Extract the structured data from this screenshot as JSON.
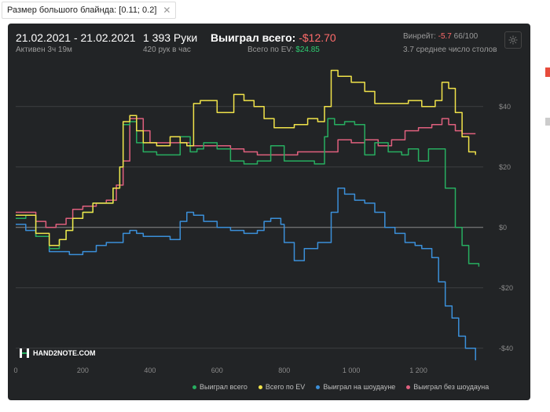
{
  "filter": {
    "label": "Размер большого блайнда: [0.11; 0.2]",
    "close": "✕"
  },
  "header": {
    "date_range": "21.02.2021 - 21.02.2021",
    "active": "Активен 3ч 19м",
    "hands": "1 393 Руки",
    "hands_per_hour": "420 рук в час",
    "won_label": "Выиграл всего: ",
    "won_value": "-$12.70",
    "ev_label": "Всего по EV: ",
    "ev_value": "$24.85",
    "winrate_label": "Винрейт: ",
    "winrate_value": "-5.7",
    "winrate_suffix": " 66/100",
    "tables": "3.7 среднее число столов"
  },
  "logo": "HAND2NOTE.COM",
  "colors": {
    "green": "#27ae60",
    "yellow": "#f1e34a",
    "blue": "#3b8fd9",
    "pink": "#e0607e"
  },
  "legend": [
    {
      "label": "Выиграл всего",
      "color": "#27ae60"
    },
    {
      "label": "Всего по EV",
      "color": "#f1e34a"
    },
    {
      "label": "Выиграл на шоудауне",
      "color": "#3b8fd9"
    },
    {
      "label": "Выиграл без шоудауна",
      "color": "#e0607e"
    }
  ],
  "chart_data": {
    "type": "line",
    "xlim": [
      0,
      1393
    ],
    "ylim": [
      -45,
      55
    ],
    "x_ticks": [
      "0",
      "200",
      "400",
      "600",
      "800",
      "1 000",
      "1 200"
    ],
    "x_tick_values": [
      0,
      200,
      400,
      600,
      800,
      1000,
      1200
    ],
    "y_ticks": [
      "$40",
      "$20",
      "$0",
      "-$20",
      "-$40"
    ],
    "y_tick_values": [
      40,
      20,
      0,
      -20,
      -40
    ],
    "grid": true,
    "series": [
      {
        "name": "Выиграл всего",
        "color": "#27ae60",
        "points": [
          [
            0,
            3
          ],
          [
            30,
            4
          ],
          [
            60,
            -3
          ],
          [
            100,
            -7
          ],
          [
            130,
            -4
          ],
          [
            150,
            -1
          ],
          [
            170,
            3
          ],
          [
            200,
            5
          ],
          [
            230,
            8
          ],
          [
            260,
            8
          ],
          [
            290,
            13
          ],
          [
            310,
            20
          ],
          [
            320,
            34
          ],
          [
            340,
            35
          ],
          [
            360,
            28
          ],
          [
            380,
            25
          ],
          [
            420,
            24
          ],
          [
            460,
            24
          ],
          [
            490,
            30
          ],
          [
            520,
            25
          ],
          [
            540,
            26
          ],
          [
            560,
            28
          ],
          [
            600,
            26
          ],
          [
            640,
            22
          ],
          [
            680,
            21
          ],
          [
            720,
            22
          ],
          [
            760,
            27
          ],
          [
            780,
            27
          ],
          [
            800,
            22
          ],
          [
            830,
            22
          ],
          [
            860,
            22
          ],
          [
            890,
            21
          ],
          [
            920,
            30
          ],
          [
            930,
            36
          ],
          [
            950,
            34
          ],
          [
            980,
            35
          ],
          [
            1010,
            34
          ],
          [
            1040,
            24
          ],
          [
            1070,
            28
          ],
          [
            1110,
            25
          ],
          [
            1150,
            24
          ],
          [
            1170,
            26
          ],
          [
            1200,
            22
          ],
          [
            1230,
            26
          ],
          [
            1260,
            26
          ],
          [
            1280,
            13
          ],
          [
            1310,
            0
          ],
          [
            1330,
            -6
          ],
          [
            1350,
            -12
          ],
          [
            1380,
            -13
          ]
        ]
      },
      {
        "name": "Всего по EV",
        "color": "#f1e34a",
        "points": [
          [
            0,
            4
          ],
          [
            30,
            4
          ],
          [
            60,
            -2
          ],
          [
            100,
            -6
          ],
          [
            130,
            -4
          ],
          [
            150,
            -1
          ],
          [
            170,
            3
          ],
          [
            200,
            5
          ],
          [
            230,
            8
          ],
          [
            260,
            8
          ],
          [
            290,
            13
          ],
          [
            310,
            20
          ],
          [
            320,
            35
          ],
          [
            340,
            37
          ],
          [
            360,
            32
          ],
          [
            380,
            28
          ],
          [
            420,
            27
          ],
          [
            460,
            30
          ],
          [
            490,
            28
          ],
          [
            510,
            27
          ],
          [
            530,
            41
          ],
          [
            550,
            42
          ],
          [
            570,
            42
          ],
          [
            600,
            38
          ],
          [
            620,
            38
          ],
          [
            650,
            44
          ],
          [
            680,
            42
          ],
          [
            710,
            40
          ],
          [
            740,
            36
          ],
          [
            770,
            33
          ],
          [
            800,
            33
          ],
          [
            830,
            34
          ],
          [
            870,
            36
          ],
          [
            900,
            35
          ],
          [
            920,
            40
          ],
          [
            940,
            52
          ],
          [
            960,
            50
          ],
          [
            1000,
            48
          ],
          [
            1040,
            45
          ],
          [
            1070,
            41
          ],
          [
            1110,
            41
          ],
          [
            1140,
            41
          ],
          [
            1170,
            42
          ],
          [
            1210,
            40
          ],
          [
            1250,
            42
          ],
          [
            1270,
            48
          ],
          [
            1290,
            46
          ],
          [
            1310,
            38
          ],
          [
            1330,
            30
          ],
          [
            1350,
            25
          ],
          [
            1370,
            24
          ]
        ]
      },
      {
        "name": "Выиграл на шоудауне",
        "color": "#3b8fd9",
        "points": [
          [
            0,
            1
          ],
          [
            30,
            -1
          ],
          [
            60,
            -3
          ],
          [
            100,
            -8
          ],
          [
            130,
            -8
          ],
          [
            160,
            -9
          ],
          [
            200,
            -8
          ],
          [
            240,
            -6
          ],
          [
            270,
            -5
          ],
          [
            300,
            -5
          ],
          [
            320,
            -2
          ],
          [
            340,
            -1
          ],
          [
            360,
            -2
          ],
          [
            380,
            -3
          ],
          [
            420,
            -3
          ],
          [
            460,
            -4
          ],
          [
            490,
            2
          ],
          [
            510,
            5
          ],
          [
            530,
            4
          ],
          [
            560,
            2
          ],
          [
            600,
            0
          ],
          [
            640,
            -1
          ],
          [
            680,
            -2
          ],
          [
            720,
            -1
          ],
          [
            740,
            2
          ],
          [
            760,
            3
          ],
          [
            790,
            1
          ],
          [
            800,
            -5
          ],
          [
            830,
            -11
          ],
          [
            860,
            -7
          ],
          [
            900,
            -5
          ],
          [
            940,
            5
          ],
          [
            960,
            13
          ],
          [
            980,
            11
          ],
          [
            1010,
            9
          ],
          [
            1040,
            8
          ],
          [
            1070,
            5
          ],
          [
            1100,
            0
          ],
          [
            1130,
            -2
          ],
          [
            1160,
            -5
          ],
          [
            1190,
            -6
          ],
          [
            1210,
            -7
          ],
          [
            1240,
            -10
          ],
          [
            1260,
            -18
          ],
          [
            1280,
            -26
          ],
          [
            1300,
            -30
          ],
          [
            1320,
            -36
          ],
          [
            1340,
            -40
          ],
          [
            1370,
            -44
          ]
        ]
      },
      {
        "name": "Выиграл без шоудауна",
        "color": "#e0607e",
        "points": [
          [
            0,
            5
          ],
          [
            30,
            5
          ],
          [
            60,
            2
          ],
          [
            90,
            0
          ],
          [
            120,
            1
          ],
          [
            150,
            3
          ],
          [
            170,
            6
          ],
          [
            200,
            7
          ],
          [
            240,
            8
          ],
          [
            270,
            9
          ],
          [
            300,
            14
          ],
          [
            320,
            22
          ],
          [
            340,
            36
          ],
          [
            360,
            36
          ],
          [
            380,
            32
          ],
          [
            400,
            28
          ],
          [
            440,
            28
          ],
          [
            480,
            28
          ],
          [
            520,
            27
          ],
          [
            560,
            27
          ],
          [
            600,
            27
          ],
          [
            640,
            26
          ],
          [
            680,
            25
          ],
          [
            720,
            24
          ],
          [
            760,
            24
          ],
          [
            800,
            24
          ],
          [
            840,
            25
          ],
          [
            880,
            25
          ],
          [
            920,
            25
          ],
          [
            960,
            29
          ],
          [
            1000,
            28
          ],
          [
            1040,
            29
          ],
          [
            1080,
            27
          ],
          [
            1120,
            29
          ],
          [
            1160,
            32
          ],
          [
            1200,
            33
          ],
          [
            1240,
            34
          ],
          [
            1270,
            36
          ],
          [
            1290,
            34
          ],
          [
            1310,
            32
          ],
          [
            1330,
            31
          ],
          [
            1350,
            31
          ],
          [
            1370,
            31
          ]
        ]
      }
    ]
  }
}
